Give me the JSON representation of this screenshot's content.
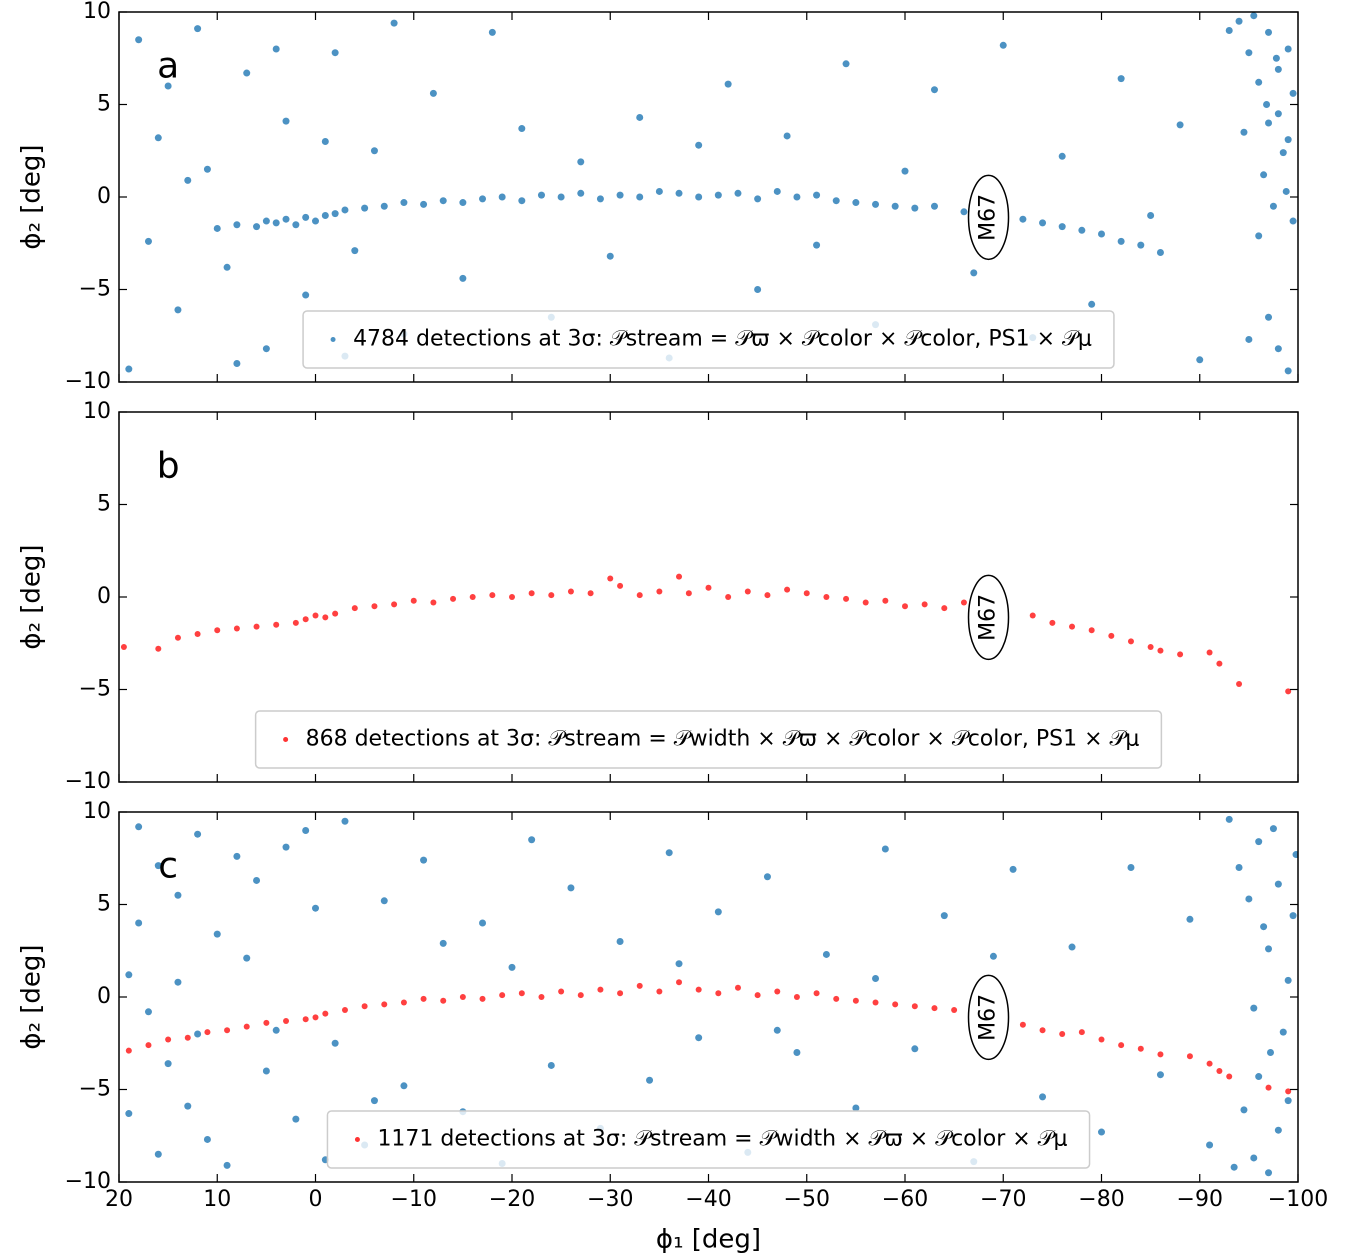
{
  "chart_data": [
    {
      "type": "scatter",
      "panel_label": "a",
      "annotation": "M67",
      "ylabel": "ϕ₂ [deg]",
      "xlim": [
        20,
        -100
      ],
      "ylim": [
        -10,
        10
      ],
      "xticks": [
        20,
        10,
        0,
        -10,
        -20,
        -30,
        -40,
        -50,
        -60,
        -70,
        -80,
        -90,
        -100
      ],
      "yticks": [
        10,
        5,
        0,
        {
          "value": -5,
          "label": "−5"
        },
        {
          "value": -10,
          "label": "−10"
        }
      ],
      "legend": "lower center",
      "series": [
        {
          "name": "4784 detections at 3σ: 𝒫stream = 𝒫ϖ × 𝒫color × 𝒫color, PS1 × 𝒫μ",
          "color": "#1f77b4",
          "x": [
            10,
            8,
            6,
            5,
            4,
            3,
            2,
            1,
            0,
            -1,
            -2,
            -3,
            -5,
            -7,
            -9,
            -11,
            -13,
            -15,
            -17,
            -19,
            -21,
            -23,
            -25,
            -27,
            -29,
            -31,
            -33,
            -35,
            -37,
            -39,
            -41,
            -43,
            -45,
            -47,
            -49,
            -51,
            -53,
            -55,
            -57,
            -59,
            -61,
            -63,
            -66,
            -70,
            -72,
            -74,
            -76,
            -78,
            -80,
            -82,
            -84,
            -86,
            18,
            16,
            14,
            12,
            11,
            9,
            7,
            5,
            3,
            1,
            -2,
            -4,
            -6,
            -9,
            -12,
            -15,
            -18,
            -21,
            -24,
            -27,
            -30,
            -33,
            -36,
            -39,
            -42,
            -45,
            -48,
            -51,
            -54,
            -57,
            -60,
            -63,
            -67,
            -70,
            -73,
            -76,
            -79,
            -82,
            -85,
            -88,
            -90,
            19,
            17,
            13,
            15,
            8,
            4,
            -1,
            -3,
            -8,
            -94,
            -95,
            -96,
            -97,
            -98,
            -99,
            -96.5,
            -97.5,
            -98.5,
            -99.5,
            -95.5,
            -99,
            -98,
            -97,
            -96,
            -97,
            -98,
            -99,
            -95,
            -99.5,
            -94.5,
            -93,
            -98.8,
            -97.8,
            -96.8
          ],
          "values": [
            -1.7,
            -1.5,
            -1.6,
            -1.3,
            -1.4,
            -1.2,
            -1.5,
            -1.1,
            -1.3,
            -1.0,
            -0.9,
            -0.7,
            -0.6,
            -0.5,
            -0.3,
            -0.4,
            -0.2,
            -0.3,
            -0.1,
            0.0,
            -0.2,
            0.1,
            0.0,
            0.2,
            -0.1,
            0.1,
            0.0,
            0.3,
            0.2,
            0.0,
            0.1,
            0.2,
            -0.1,
            0.3,
            0.0,
            0.1,
            -0.2,
            -0.3,
            -0.4,
            -0.5,
            -0.6,
            -0.5,
            -0.8,
            -1.0,
            -1.2,
            -1.4,
            -1.6,
            -1.8,
            -2.0,
            -2.4,
            -2.6,
            -3.0,
            8.5,
            3.2,
            -6.1,
            9.1,
            1.5,
            -3.8,
            6.7,
            -8.2,
            4.1,
            -5.3,
            7.8,
            -2.9,
            2.5,
            -7.4,
            5.6,
            -4.4,
            8.9,
            3.7,
            -6.5,
            1.9,
            -3.2,
            4.3,
            -8.7,
            2.8,
            6.1,
            -5.0,
            3.3,
            -2.6,
            7.2,
            -6.9,
            1.4,
            5.8,
            -4.1,
            8.2,
            -7.6,
            2.2,
            -5.8,
            6.4,
            -1.0,
            3.9,
            -8.8,
            -9.3,
            -2.4,
            0.9,
            6.0,
            -9.0,
            8.0,
            3.0,
            -8.6,
            9.4,
            9.5,
            7.8,
            6.2,
            8.9,
            4.5,
            3.1,
            1.2,
            -0.5,
            2.4,
            5.6,
            9.8,
            8.0,
            6.9,
            4.0,
            -2.1,
            -6.5,
            -8.2,
            -9.4,
            -7.7,
            -1.3,
            3.5,
            9.0,
            0.3,
            7.5,
            5.0
          ]
        }
      ]
    },
    {
      "type": "scatter",
      "panel_label": "b",
      "annotation": "M67",
      "ylabel": "ϕ₂ [deg]",
      "xlim": [
        20,
        -100
      ],
      "ylim": [
        -10,
        10
      ],
      "xticks": [
        20,
        10,
        0,
        -10,
        -20,
        -30,
        -40,
        -50,
        -60,
        -70,
        -80,
        -90,
        -100
      ],
      "yticks": [
        10,
        5,
        0,
        {
          "value": -5,
          "label": "−5"
        },
        {
          "value": -10,
          "label": "−10"
        }
      ],
      "legend": "lower center",
      "series": [
        {
          "name": "868 detections at 3σ: 𝒫stream = 𝒫width × 𝒫ϖ × 𝒫color × 𝒫color, PS1 × 𝒫μ",
          "color": "#ff0000",
          "x": [
            19.5,
            16,
            14,
            12,
            10,
            8,
            6,
            4,
            2,
            1,
            0,
            -1,
            -2,
            -4,
            -6,
            -8,
            -10,
            -12,
            -14,
            -16,
            -18,
            -20,
            -22,
            -24,
            -26,
            -28,
            -30,
            -31,
            -33,
            -35,
            -37,
            -38,
            -40,
            -42,
            -44,
            -46,
            -48,
            -50,
            -52,
            -54,
            -56,
            -58,
            -60,
            -62,
            -64,
            -66,
            -70,
            -73,
            -75,
            -77,
            -79,
            -81,
            -83,
            -85,
            -86,
            -88,
            -91,
            -92,
            -94,
            -99
          ],
          "values": [
            -2.7,
            -2.8,
            -2.2,
            -2.0,
            -1.8,
            -1.7,
            -1.6,
            -1.5,
            -1.4,
            -1.2,
            -1.0,
            -1.1,
            -0.9,
            -0.6,
            -0.5,
            -0.4,
            -0.2,
            -0.3,
            -0.1,
            0.0,
            0.1,
            0.0,
            0.2,
            0.1,
            0.3,
            0.2,
            1.0,
            0.6,
            0.1,
            0.3,
            1.1,
            0.2,
            0.5,
            0.0,
            0.3,
            0.1,
            0.4,
            0.2,
            0.0,
            -0.1,
            -0.3,
            -0.2,
            -0.5,
            -0.4,
            -0.6,
            -0.3,
            -0.7,
            -1.0,
            -1.4,
            -1.6,
            -1.8,
            -2.1,
            -2.4,
            -2.7,
            -2.9,
            -3.1,
            -3.0,
            -3.6,
            -4.7,
            -5.1
          ]
        }
      ]
    },
    {
      "type": "scatter",
      "panel_label": "c",
      "annotation": "M67",
      "ylabel": "ϕ₂ [deg]",
      "xlabel": "ϕ₁ [deg]",
      "xlim": [
        20,
        -100
      ],
      "ylim": [
        -10,
        10
      ],
      "xticks": [
        20,
        10,
        0,
        {
          "value": -10,
          "label": "−10"
        },
        {
          "value": -20,
          "label": "−20"
        },
        {
          "value": -30,
          "label": "−30"
        },
        {
          "value": -40,
          "label": "−40"
        },
        {
          "value": -50,
          "label": "−50"
        },
        {
          "value": -60,
          "label": "−60"
        },
        {
          "value": -70,
          "label": "−70"
        },
        {
          "value": -80,
          "label": "−80"
        },
        {
          "value": -90,
          "label": "−90"
        },
        {
          "value": -100,
          "label": "−100"
        }
      ],
      "yticks": [
        10,
        5,
        0,
        {
          "value": -5,
          "label": "−5"
        },
        {
          "value": -10,
          "label": "−10"
        }
      ],
      "legend": "lower center",
      "series": [
        {
          "color": "#1f77b4",
          "x": [
            18,
            16,
            14,
            12,
            10,
            19,
            17,
            15,
            13,
            11,
            9,
            7,
            6,
            5,
            3,
            2,
            0,
            -2,
            -3,
            -5,
            -7,
            -9,
            -11,
            -13,
            -15,
            -17,
            -19,
            -22,
            -24,
            -26,
            -29,
            -31,
            -34,
            -36,
            -39,
            -41,
            -44,
            -46,
            -49,
            -52,
            -55,
            -58,
            -61,
            -64,
            -67,
            -71,
            -74,
            -77,
            -80,
            -83,
            -86,
            -89,
            -91,
            19,
            18,
            16,
            14,
            12,
            8,
            4,
            1,
            -1,
            -6,
            -20,
            -37,
            -47,
            -57,
            -69,
            -93,
            -94,
            -95,
            -96,
            -97,
            -98,
            -99,
            -95.5,
            -96.5,
            -97.5,
            -98.5,
            -99.5,
            -94.5,
            -95.5,
            -97,
            -98,
            -99,
            -96,
            -93.5,
            -99.8,
            -97.2
          ],
          "values": [
            9.2,
            7.1,
            5.5,
            8.8,
            3.4,
            1.2,
            -0.8,
            -3.6,
            -5.9,
            -7.7,
            -9.1,
            2.1,
            6.3,
            -4.0,
            8.1,
            -6.6,
            4.8,
            -2.5,
            9.5,
            -8.0,
            5.2,
            -4.8,
            7.4,
            2.9,
            -6.2,
            4.0,
            -9.0,
            8.5,
            -3.7,
            5.9,
            -7.1,
            3.0,
            -4.5,
            7.8,
            -2.2,
            4.6,
            -8.4,
            6.5,
            -3.0,
            2.3,
            -6.0,
            8.0,
            -2.8,
            4.4,
            -8.9,
            6.9,
            -5.4,
            2.7,
            -7.3,
            7.0,
            -4.2,
            4.2,
            -8.0,
            -6.3,
            4.0,
            -8.5,
            0.8,
            -2.0,
            7.6,
            -1.8,
            9.0,
            -8.8,
            -5.6,
            1.6,
            1.8,
            -1.8,
            1.0,
            2.2,
            9.6,
            7.0,
            5.3,
            8.4,
            2.6,
            6.1,
            0.9,
            -0.6,
            3.8,
            9.1,
            -1.9,
            4.4,
            -6.1,
            -8.7,
            -9.5,
            -7.2,
            -5.6,
            -4.3,
            -9.2,
            7.7,
            -3.0
          ]
        },
        {
          "name": "1171 detections at 3σ: 𝒫stream = 𝒫width × 𝒫ϖ × 𝒫color × 𝒫μ",
          "color": "#ff0000",
          "x": [
            19,
            17,
            15,
            13,
            11,
            9,
            7,
            5,
            3,
            1,
            0,
            -1,
            -3,
            -5,
            -7,
            -9,
            -11,
            -13,
            -15,
            -17,
            -19,
            -21,
            -23,
            -25,
            -27,
            -29,
            -31,
            -33,
            -35,
            -37,
            -39,
            -41,
            -43,
            -45,
            -47,
            -49,
            -51,
            -53,
            -55,
            -57,
            -59,
            -61,
            -63,
            -65,
            -70,
            -72,
            -74,
            -76,
            -78,
            -80,
            -82,
            -84,
            -86,
            -89,
            -91,
            -92,
            -93,
            -97,
            -99
          ],
          "values": [
            -2.9,
            -2.6,
            -2.3,
            -2.2,
            -1.9,
            -1.8,
            -1.6,
            -1.4,
            -1.3,
            -1.2,
            -1.1,
            -0.9,
            -0.7,
            -0.5,
            -0.4,
            -0.3,
            -0.1,
            -0.2,
            0.0,
            -0.1,
            0.1,
            0.2,
            0.0,
            0.3,
            0.1,
            0.4,
            0.2,
            0.6,
            0.3,
            0.8,
            0.4,
            0.2,
            0.5,
            0.1,
            0.3,
            0.0,
            0.2,
            -0.1,
            -0.2,
            -0.3,
            -0.4,
            -0.5,
            -0.6,
            -0.7,
            -1.3,
            -1.5,
            -1.8,
            -2.0,
            -1.9,
            -2.3,
            -2.6,
            -2.8,
            -3.1,
            -3.2,
            -3.6,
            -4.0,
            -4.3,
            -4.9,
            -5.1
          ]
        }
      ]
    }
  ]
}
